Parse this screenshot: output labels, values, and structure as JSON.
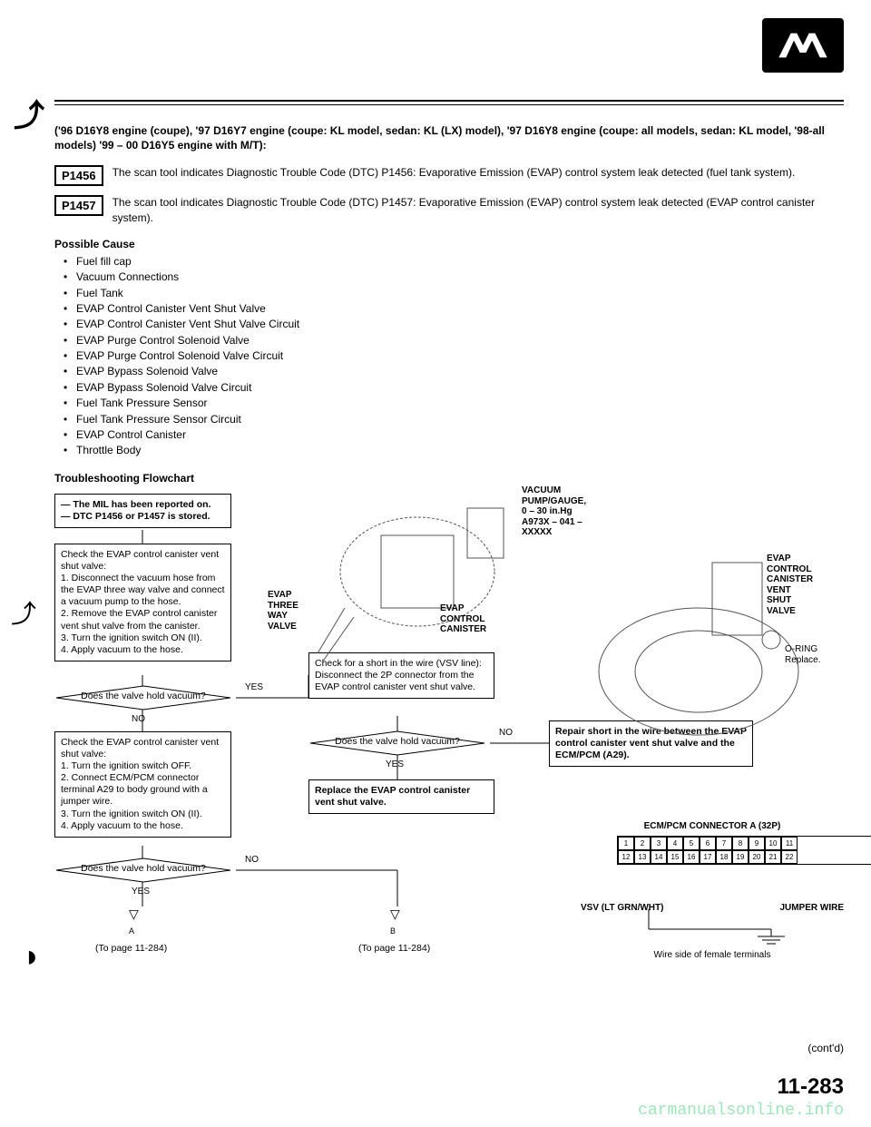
{
  "header_models": "('96 D16Y8 engine (coupe), '97 D16Y7 engine (coupe: KL model, sedan: KL (LX) model), '97 D16Y8 engine (coupe: all models, sedan: KL model, '98-all models) '99 – 00 D16Y5 engine with M/T):",
  "dtc1": {
    "code": "P1456",
    "text": "The scan tool indicates Diagnostic Trouble Code (DTC) P1456: Evaporative Emission (EVAP) control system leak detected (fuel tank system)."
  },
  "dtc2": {
    "code": "P1457",
    "text": "The scan tool indicates Diagnostic Trouble Code (DTC) P1457: Evaporative Emission (EVAP) control system leak detected (EVAP control canister system)."
  },
  "possible_cause_title": "Possible Cause",
  "causes": [
    "Fuel fill cap",
    "Vacuum Connections",
    "Fuel Tank",
    "EVAP Control Canister Vent Shut Valve",
    "EVAP Control Canister Vent Shut Valve Circuit",
    "EVAP Purge Control Solenoid Valve",
    "EVAP Purge Control Solenoid Valve Circuit",
    "EVAP Bypass Solenoid Valve",
    "EVAP Bypass Solenoid Valve Circuit",
    "Fuel Tank Pressure Sensor",
    "Fuel Tank Pressure Sensor Circuit",
    "EVAP Control Canister",
    "Throttle Body"
  ],
  "flow_title": "Troubleshooting Flowchart",
  "box_mil": "— The MIL has been reported on.\n— DTC P1456 or P1457 is stored.",
  "box_check1": "Check the EVAP control canister vent shut valve:\n1. Disconnect the vacuum hose from the EVAP three way valve and connect a vacuum pump to the hose.\n2. Remove the EVAP control canister vent shut valve from the canister.\n3. Turn the ignition switch ON (II).\n4. Apply vacuum to the hose.",
  "diamond1": "Does the valve hold vacuum?",
  "box_check2": "Check the EVAP control canister vent shut valve:\n1. Turn the ignition switch OFF.\n2. Connect ECM/PCM connector terminal A29 to body ground with a jumper wire.\n3. Turn the ignition switch ON (II).\n4. Apply vacuum to the hose.",
  "diamond2": "Does the valve hold vacuum?",
  "box_short": "Check for a short in the wire (VSV line):\nDisconnect the 2P connector from the EVAP control canister vent shut valve.",
  "diamond3": "Does the valve hold vacuum?",
  "box_replace": "Replace the EVAP control canister vent shut valve.",
  "box_repair": "Repair short in the wire between the EVAP control canister vent shut valve and the ECM/PCM (A29).",
  "yes": "YES",
  "no": "NO",
  "to_page_a": "(To page 11-284)",
  "to_page_b": "(To page 11-284)",
  "labels": {
    "vacuum_pump": "VACUUM\nPUMP/GAUGE, 0 – 30 in.Hg\nA973X – 041 –\nXXXXX",
    "evap_three": "EVAP\nTHREE\nWAY\nVALVE",
    "evap_ctrl_can": "EVAP\nCONTROL\nCANISTER",
    "evap_shut": "EVAP\nCONTROL\nCANISTER\nVENT\nSHUT\nVALVE",
    "oring": "O-RING\nReplace.",
    "ecm_conn": "ECM/PCM CONNECTOR A (32P)",
    "vsv": "VSV (LT GRN/WHT)",
    "jumper": "JUMPER WIRE",
    "wire_side": "Wire side of female terminals"
  },
  "contd": "(cont'd)",
  "pagenum": "11-283",
  "watermark": "carmanualsonline.info"
}
